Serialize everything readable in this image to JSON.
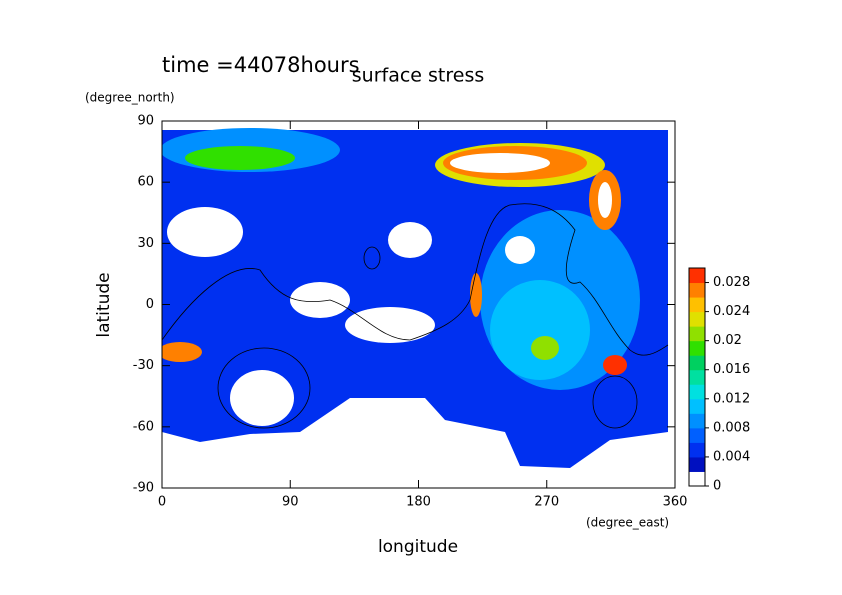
{
  "chart_data": {
    "type": "contour",
    "title": "surface stress",
    "subtitle": "time =44078hours",
    "xlabel": "longitude",
    "x_unit": "(degree_east)",
    "ylabel": "latitude",
    "y_unit": "(degree_north)",
    "xlim": [
      0,
      360
    ],
    "xticks": [
      0,
      90,
      180,
      270,
      360
    ],
    "ylim": [
      -90,
      90
    ],
    "yticks": [
      -90,
      -60,
      -30,
      0,
      30,
      60,
      90
    ],
    "colorbar": {
      "lim": [
        0,
        0.03
      ],
      "ticks": [
        0,
        0.004,
        0.008,
        0.012,
        0.016,
        0.02,
        0.024,
        0.028
      ],
      "colors": [
        "#ffffff",
        "#0010c0",
        "#0030f0",
        "#0060ff",
        "#0090ff",
        "#00c0ff",
        "#00e0e0",
        "#00e0a0",
        "#00d060",
        "#30e000",
        "#90e000",
        "#e0e000",
        "#ffc000",
        "#ff8000",
        "#ff3000"
      ]
    }
  }
}
